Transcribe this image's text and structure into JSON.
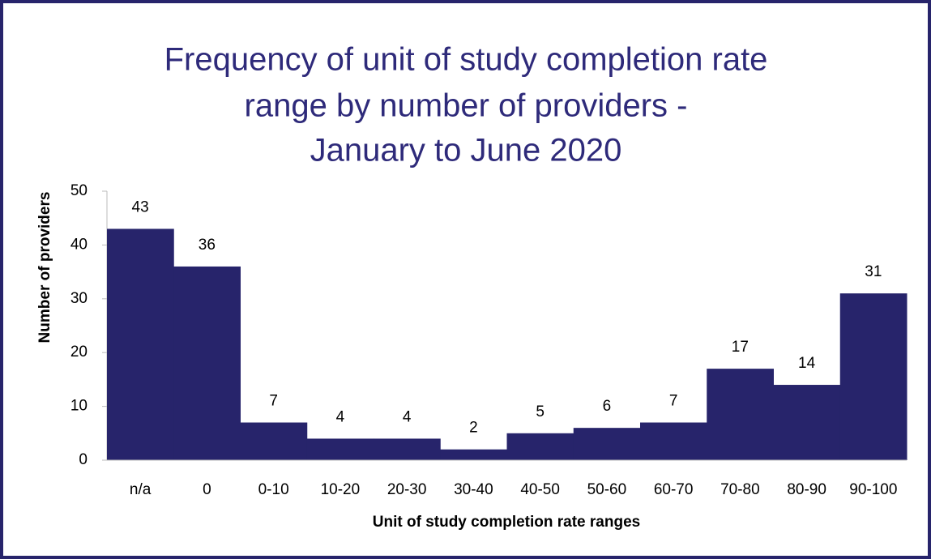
{
  "chart_data": {
    "type": "bar",
    "title": [
      "Frequency of unit of study completion rate",
      "range by number of providers -",
      "January to June 2020"
    ],
    "xlabel": "Unit of study completion rate ranges",
    "ylabel": "Number of providers",
    "categories": [
      "n/a",
      "0",
      "0-10",
      "10-20",
      "20-30",
      "30-40",
      "40-50",
      "50-60",
      "60-70",
      "70-80",
      "80-90",
      "90-100"
    ],
    "values": [
      43,
      36,
      7,
      4,
      4,
      2,
      5,
      6,
      7,
      17,
      14,
      31
    ],
    "color": "#27246b",
    "ylim": [
      0,
      50
    ],
    "yticks": [
      0,
      10,
      20,
      30,
      40,
      50
    ],
    "grid": false
  }
}
